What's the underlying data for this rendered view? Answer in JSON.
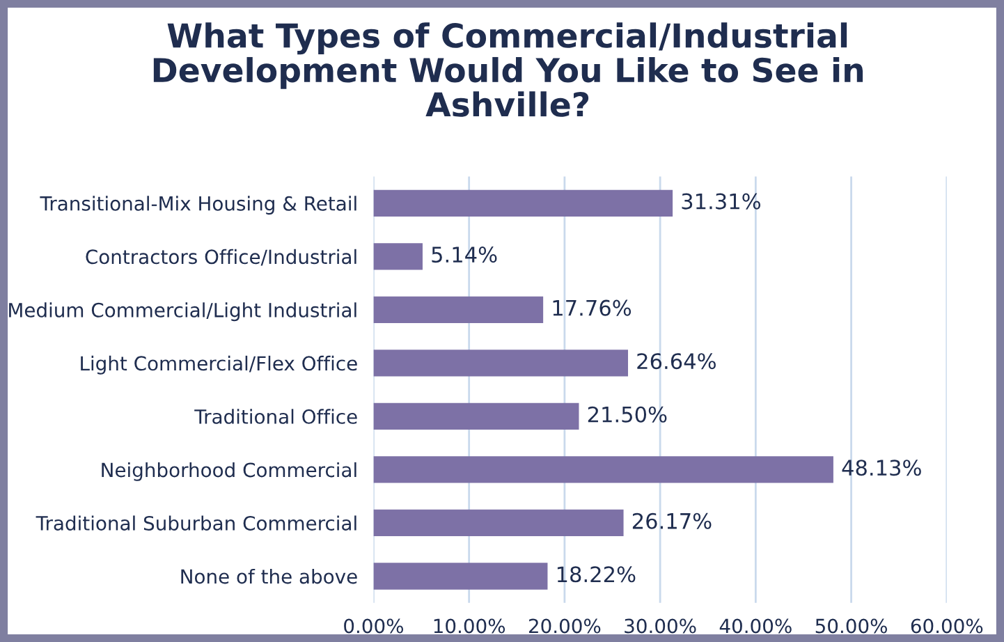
{
  "chart_data": {
    "type": "bar",
    "orientation": "horizontal",
    "title": "What Types of Commercial/Industrial\nDevelopment Would You Like to See in\nAshville?",
    "categories": [
      "Transitional-Mix Housing & Retail",
      "Contractors Office/Industrial",
      "Medium Commercial/Light Industrial",
      "Light Commercial/Flex Office",
      "Traditional Office",
      "Neighborhood Commercial",
      "Traditional Suburban Commercial",
      "None of the above"
    ],
    "values": [
      31.31,
      5.14,
      17.76,
      26.64,
      21.5,
      48.13,
      26.17,
      18.22
    ],
    "value_labels": [
      "31.31%",
      "5.14%",
      "17.76%",
      "26.64%",
      "21.50%",
      "48.13%",
      "26.17%",
      "18.22%"
    ],
    "color": "#7d71a6",
    "xlim": [
      0,
      60
    ],
    "xticks": [
      {
        "value": 0,
        "label": "0.00%"
      },
      {
        "value": 10,
        "label": "10.00%"
      },
      {
        "value": 20,
        "label": "20.00%"
      },
      {
        "value": 30,
        "label": "30.00%"
      },
      {
        "value": 40,
        "label": "40.00%"
      },
      {
        "value": 50,
        "label": "50.00%"
      },
      {
        "value": 60,
        "label": "60.00%"
      }
    ],
    "grid": "x",
    "legend": false
  }
}
